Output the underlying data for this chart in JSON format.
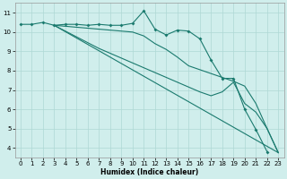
{
  "line1_x": [
    0,
    1,
    2,
    3,
    4,
    5,
    6,
    7,
    8,
    9,
    10,
    11,
    12,
    13,
    14,
    15,
    16,
    17,
    18,
    19,
    20,
    21,
    22
  ],
  "line1_y": [
    10.4,
    10.4,
    10.5,
    10.35,
    10.4,
    10.4,
    10.35,
    10.4,
    10.35,
    10.35,
    10.45,
    11.1,
    10.15,
    9.85,
    10.1,
    10.05,
    9.65,
    8.55,
    7.6,
    7.6,
    6.0,
    4.95,
    3.8
  ],
  "line2_x": [
    3,
    4,
    5,
    6,
    7,
    8,
    9,
    10,
    11,
    12,
    13,
    14,
    15,
    16,
    17,
    18,
    19,
    20,
    21,
    22,
    23
  ],
  "line2_y": [
    10.35,
    10.3,
    10.25,
    10.2,
    10.15,
    10.1,
    10.05,
    10.0,
    9.8,
    9.4,
    9.1,
    8.7,
    8.25,
    8.05,
    7.85,
    7.65,
    7.45,
    7.2,
    6.3,
    5.0,
    3.75
  ],
  "line3_x": [
    3,
    4,
    5,
    6,
    7,
    8,
    9,
    10,
    11,
    12,
    13,
    14,
    15,
    16,
    17,
    18,
    19,
    20,
    21,
    22,
    23
  ],
  "line3_y": [
    10.35,
    10.05,
    9.75,
    9.45,
    9.15,
    8.9,
    8.65,
    8.4,
    8.15,
    7.9,
    7.65,
    7.4,
    7.15,
    6.9,
    6.7,
    6.9,
    7.4,
    6.3,
    5.85,
    5.0,
    3.75
  ],
  "line4_x": [
    3,
    23
  ],
  "line4_y": [
    10.35,
    3.75
  ],
  "bg_color": "#d0eeec",
  "grid_color": "#aed8d4",
  "line_color": "#1a7a6e",
  "xlabel": "Humidex (Indice chaleur)",
  "xlim": [
    -0.5,
    23.5
  ],
  "ylim": [
    3.5,
    11.5
  ],
  "xticks": [
    0,
    1,
    2,
    3,
    4,
    5,
    6,
    7,
    8,
    9,
    10,
    11,
    12,
    13,
    14,
    15,
    16,
    17,
    18,
    19,
    20,
    21,
    22,
    23
  ],
  "yticks": [
    4,
    5,
    6,
    7,
    8,
    9,
    10,
    11
  ],
  "xlabel_fontsize": 5.5,
  "tick_fontsize": 5.0,
  "marker_size": 2.0,
  "linewidth": 0.8
}
